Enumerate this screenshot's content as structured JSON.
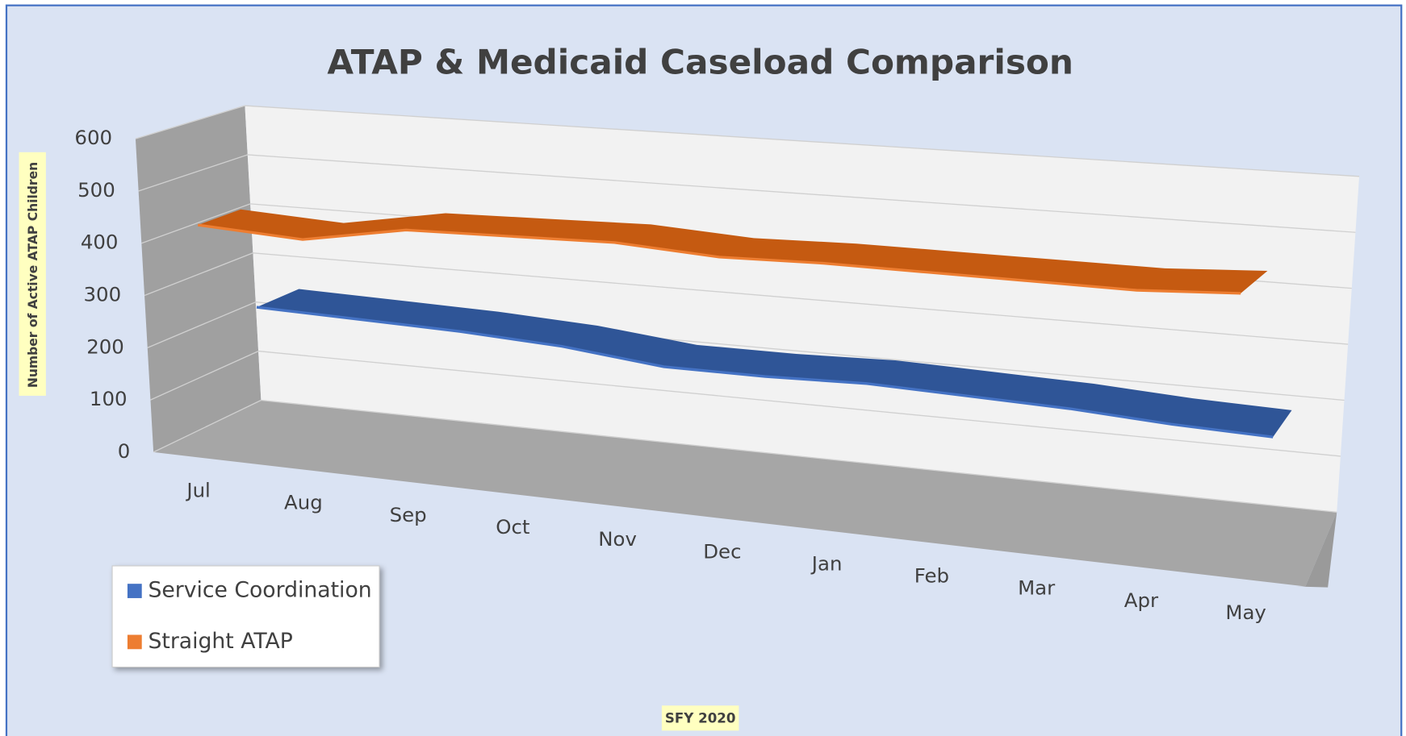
{
  "chart_data": {
    "type": "line",
    "title": "ATAP & Medicaid Caseload Comparison",
    "x_label": "SFY 2020",
    "y_label": "Number of Active ATAP Children",
    "categories": [
      "Jul",
      "Aug",
      "Sep",
      "Oct",
      "Nov",
      "Dec",
      "Jan",
      "Feb",
      "Mar",
      "Apr",
      "May"
    ],
    "series": [
      {
        "name": "Service Coordination",
        "color": "#4472c4",
        "values": [
          240,
          235,
          230,
          220,
          200,
          200,
          205,
          200,
          195,
          185,
          180
        ]
      },
      {
        "name": "Straight ATAP",
        "color": "#ed7d31",
        "values": [
          440,
          430,
          465,
          470,
          475,
          465,
          470,
          470,
          470,
          470,
          480
        ]
      }
    ],
    "ylim": [
      0,
      600
    ],
    "yticks": [
      0,
      100,
      200,
      300,
      400,
      500,
      600
    ],
    "grid": true,
    "legend": "bottom-left"
  }
}
